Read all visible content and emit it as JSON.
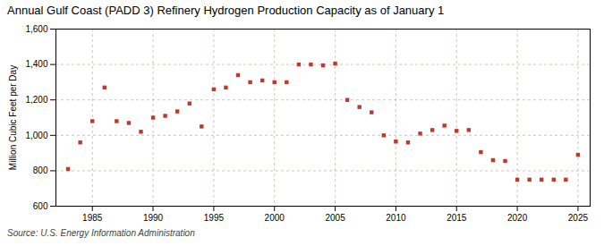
{
  "chart_data": {
    "type": "scatter",
    "title": "Annual Gulf Coast (PADD 3) Refinery Hydrogen Production Capacity as of January 1",
    "ylabel": "Million Cubic Feet per Day",
    "source": "Source: U.S. Energy Information Administration",
    "x": [
      1983,
      1984,
      1985,
      1986,
      1987,
      1988,
      1989,
      1990,
      1991,
      1992,
      1993,
      1994,
      1995,
      1996,
      1997,
      1998,
      1999,
      2000,
      2001,
      2002,
      2003,
      2004,
      2005,
      2006,
      2007,
      2008,
      2009,
      2010,
      2011,
      2012,
      2013,
      2014,
      2015,
      2016,
      2017,
      2018,
      2019,
      2020,
      2021,
      2022,
      2023,
      2024,
      2025
    ],
    "values": [
      810,
      960,
      1080,
      1270,
      1080,
      1070,
      1020,
      1100,
      1110,
      1135,
      1180,
      1050,
      1260,
      1270,
      1340,
      1300,
      1310,
      1300,
      1300,
      1400,
      1400,
      1395,
      1405,
      1200,
      1160,
      1130,
      1000,
      965,
      960,
      1010,
      1030,
      1055,
      1025,
      1030,
      905,
      860,
      855,
      750,
      750,
      750,
      750,
      750,
      890
    ],
    "color": "#c0392b",
    "marker": "square",
    "xlim": [
      1982,
      2026
    ],
    "xticks": [
      1985,
      1990,
      1995,
      2000,
      2005,
      2010,
      2015,
      2020,
      2025
    ],
    "ylim": [
      600,
      1600
    ],
    "yticks": [
      600,
      800,
      {
        "value": 1000,
        "label": "1,000"
      },
      {
        "value": 1200,
        "label": "1,200"
      },
      {
        "value": 1400,
        "label": "1,400"
      },
      {
        "value": 1600,
        "label": "1,600"
      }
    ],
    "grid": true
  }
}
